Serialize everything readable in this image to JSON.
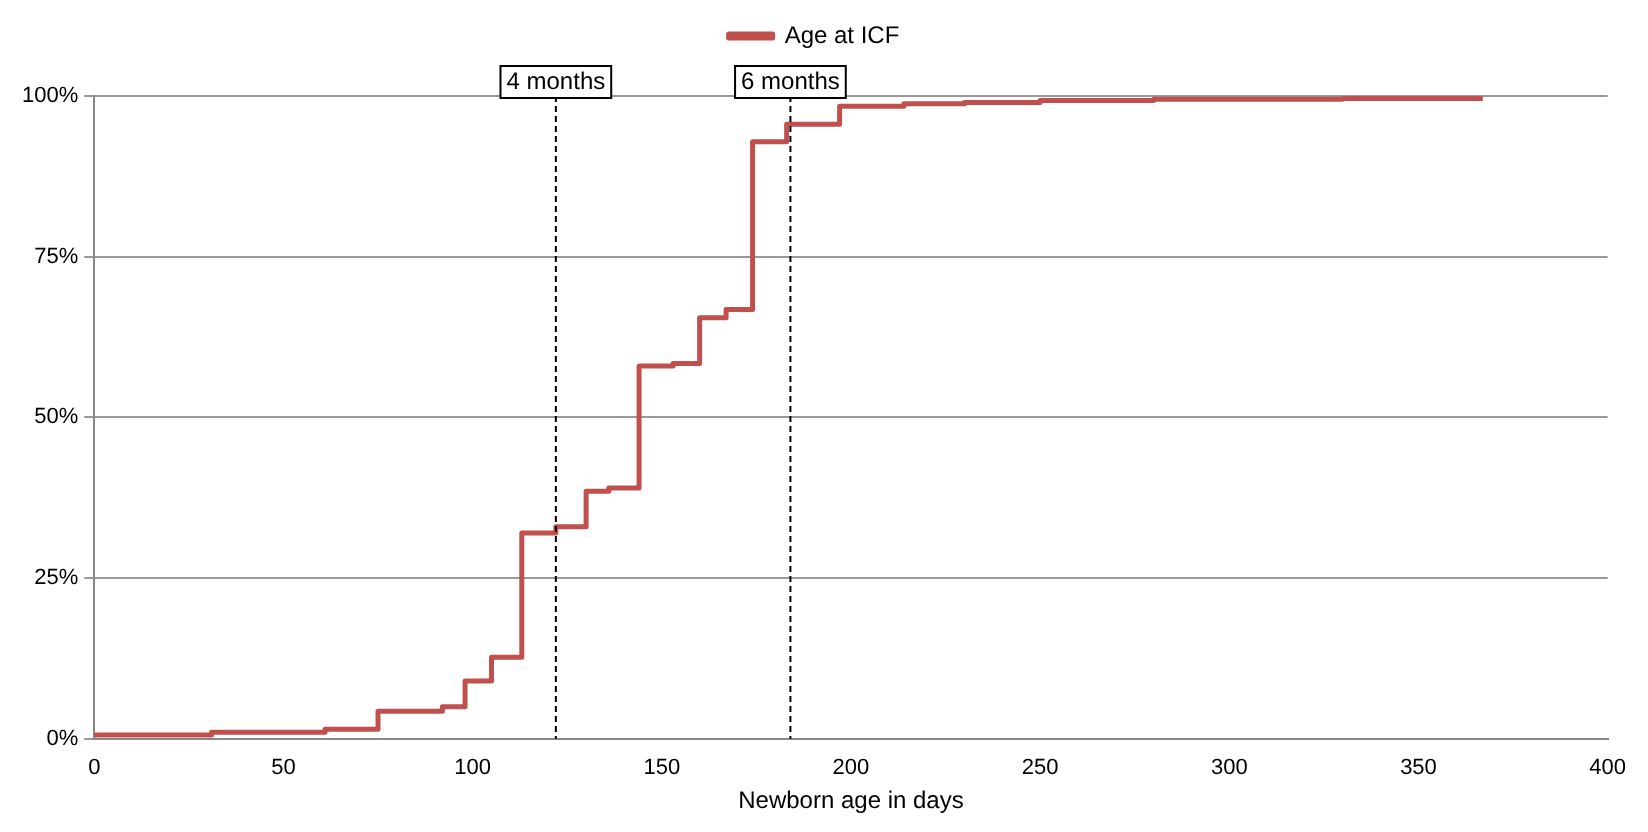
{
  "chart_data": {
    "type": "step",
    "xlabel": "Newborn age in days",
    "legend": "top",
    "grid": "y",
    "marker": "none",
    "line_style": "solid",
    "xlim": [
      0,
      400
    ],
    "xticks": [
      0,
      50,
      100,
      150,
      200,
      250,
      300,
      350,
      400
    ],
    "ylim": [
      0,
      100
    ],
    "yticks": [
      {
        "value": 0,
        "label": "0%"
      },
      {
        "value": 25,
        "label": "25%"
      },
      {
        "value": 50,
        "label": "50%"
      },
      {
        "value": 75,
        "label": "75%"
      },
      {
        "value": 100,
        "label": "100%"
      }
    ],
    "series": [
      {
        "name": "Age at ICF",
        "color": "#c0504d",
        "x": [
          0,
          31,
          61,
          75,
          92,
          98,
          105,
          113,
          122,
          130,
          136,
          144,
          153,
          160,
          167,
          174,
          183,
          197,
          214,
          230,
          250,
          280,
          330,
          367
        ],
        "values": [
          0.3,
          0.6,
          1,
          1.5,
          4.3,
          5,
          9,
          12.7,
          32,
          33,
          38.5,
          39,
          58,
          58.4,
          65.5,
          66.8,
          92.9,
          95.6,
          98.4,
          98.8,
          99,
          99.3,
          99.5,
          99.6
        ]
      }
    ],
    "ref_lines": [
      {
        "axis": "x",
        "value": 122,
        "label": "4 months",
        "line_style": "dashed",
        "color": "#000000"
      },
      {
        "axis": "x",
        "value": 184,
        "label": "6 months",
        "line_style": "dashed",
        "color": "#000000"
      }
    ]
  }
}
